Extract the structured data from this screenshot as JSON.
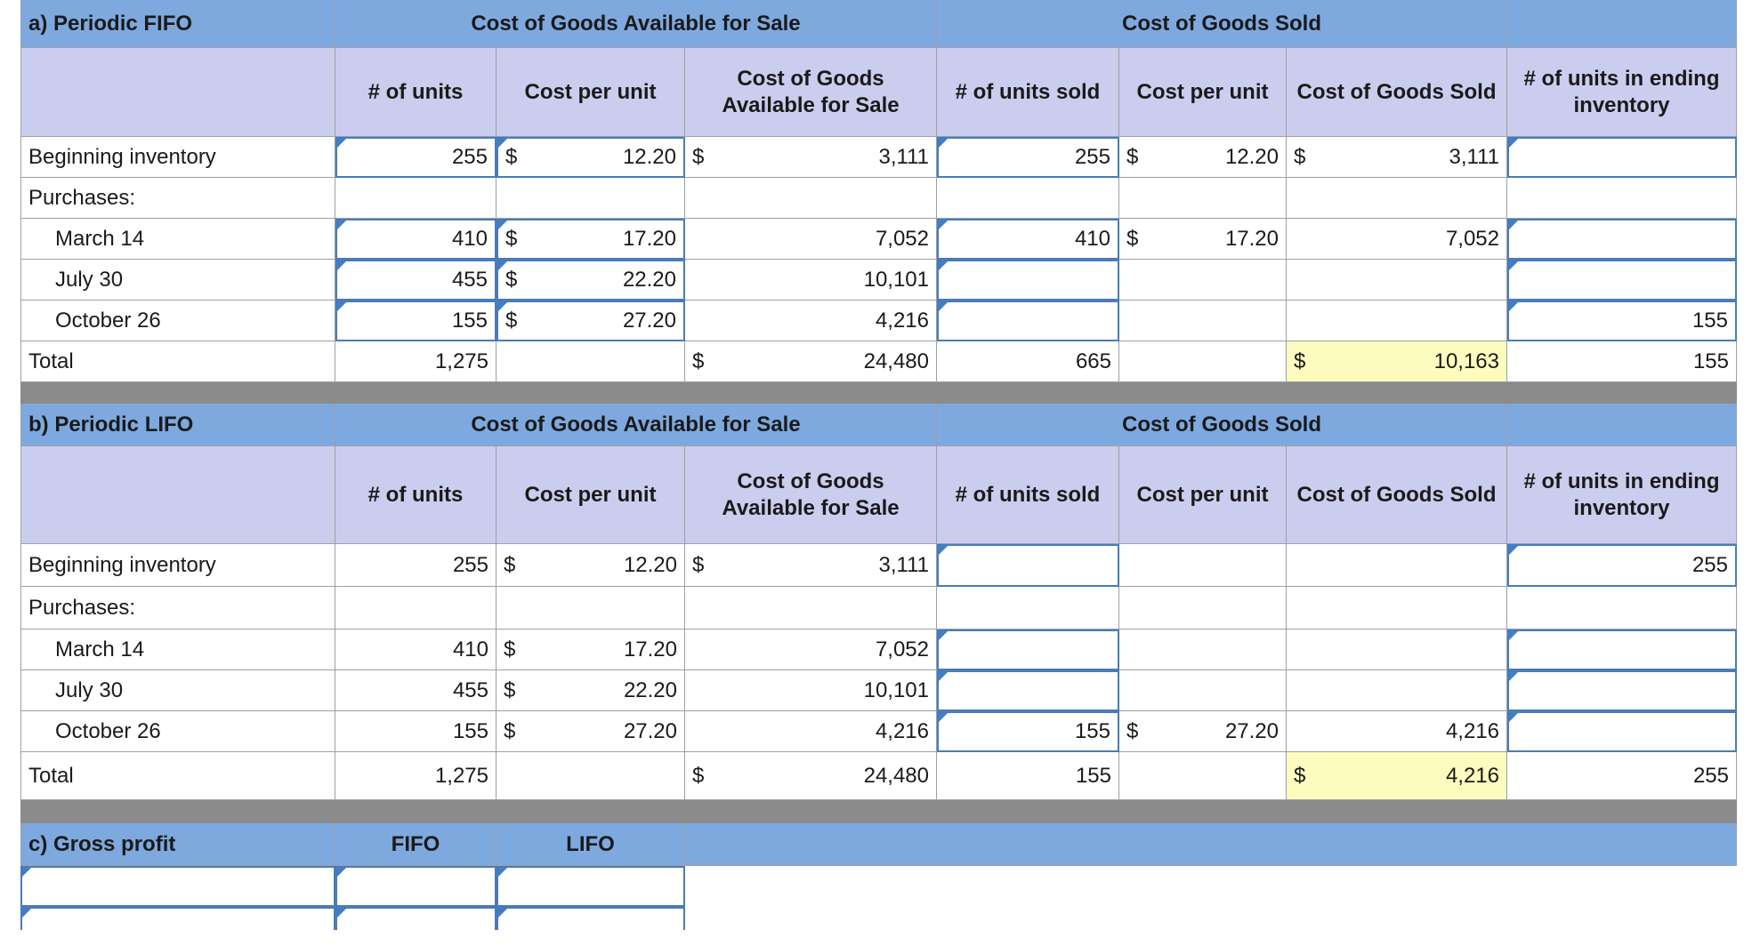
{
  "fifo": {
    "title": "a) Periodic FIFO",
    "group_available": "Cost of Goods Available for Sale",
    "group_sold": "Cost of Goods Sold",
    "col_units": "# of units",
    "col_cost_per_unit": "Cost per unit",
    "col_cogas": "Cost of Goods Available for Sale",
    "col_units_sold": "# of units sold",
    "col_cost_per_unit_sold": "Cost per unit",
    "col_cogs": "Cost of Goods Sold",
    "col_ending": "# of units in ending inventory",
    "rows": [
      {
        "label": "Beginning inventory",
        "units": "255",
        "cost_dollar": "$",
        "cost": "12.20",
        "avail_dollar": "$",
        "avail": "3,111",
        "sold_units": "255",
        "sold_cost_dollar": "$",
        "sold_cost": "12.20",
        "cogs_dollar": "$",
        "cogs": "3,111",
        "ending": ""
      },
      {
        "label": "Purchases:"
      },
      {
        "label": "March 14",
        "units": "410",
        "cost_dollar": "$",
        "cost": "17.20",
        "avail_dollar": "",
        "avail": "7,052",
        "sold_units": "410",
        "sold_cost_dollar": "$",
        "sold_cost": "17.20",
        "cogs_dollar": "",
        "cogs": "7,052",
        "ending": ""
      },
      {
        "label": "July 30",
        "units": "455",
        "cost_dollar": "$",
        "cost": "22.20",
        "avail_dollar": "",
        "avail": "10,101",
        "sold_units": "",
        "sold_cost_dollar": "",
        "sold_cost": "",
        "cogs_dollar": "",
        "cogs": "",
        "ending": ""
      },
      {
        "label": "October 26",
        "units": "155",
        "cost_dollar": "$",
        "cost": "27.20",
        "avail_dollar": "",
        "avail": "4,216",
        "sold_units": "",
        "sold_cost_dollar": "",
        "sold_cost": "",
        "cogs_dollar": "",
        "cogs": "",
        "ending": "155"
      }
    ],
    "total": {
      "label": "Total",
      "units": "1,275",
      "avail_dollar": "$",
      "avail": "24,480",
      "sold_units": "665",
      "cogs_dollar": "$",
      "cogs": "10,163",
      "ending": "155"
    }
  },
  "lifo": {
    "title": "b) Periodic LIFO",
    "group_available": "Cost of Goods Available for Sale",
    "group_sold": "Cost of Goods Sold",
    "col_units": "# of units",
    "col_cost_per_unit": "Cost per unit",
    "col_cogas": "Cost of Goods Available for Sale",
    "col_units_sold": "# of units sold",
    "col_cost_per_unit_sold": "Cost per unit",
    "col_cogs": "Cost of Goods Sold",
    "col_ending": "# of units in ending inventory",
    "rows": [
      {
        "label": "Beginning inventory",
        "units": "255",
        "cost_dollar": "$",
        "cost": "12.20",
        "avail_dollar": "$",
        "avail": "3,111",
        "sold_units": "",
        "sold_cost_dollar": "",
        "sold_cost": "",
        "cogs_dollar": "",
        "cogs": "",
        "ending": "255"
      },
      {
        "label": "Purchases:"
      },
      {
        "label": "March 14",
        "units": "410",
        "cost_dollar": "$",
        "cost": "17.20",
        "avail_dollar": "",
        "avail": "7,052",
        "sold_units": "",
        "sold_cost_dollar": "",
        "sold_cost": "",
        "cogs_dollar": "",
        "cogs": "",
        "ending": ""
      },
      {
        "label": "July 30",
        "units": "455",
        "cost_dollar": "$",
        "cost": "22.20",
        "avail_dollar": "",
        "avail": "10,101",
        "sold_units": "",
        "sold_cost_dollar": "",
        "sold_cost": "",
        "cogs_dollar": "",
        "cogs": "",
        "ending": ""
      },
      {
        "label": "October 26",
        "units": "155",
        "cost_dollar": "$",
        "cost": "27.20",
        "avail_dollar": "",
        "avail": "4,216",
        "sold_units": "155",
        "sold_cost_dollar": "$",
        "sold_cost": "27.20",
        "cogs_dollar": "",
        "cogs": "4,216",
        "ending": ""
      }
    ],
    "total": {
      "label": "Total",
      "units": "1,275",
      "avail_dollar": "$",
      "avail": "24,480",
      "sold_units": "155",
      "cogs_dollar": "$",
      "cogs": "4,216",
      "ending": "255"
    }
  },
  "gross_profit": {
    "title": "c) Gross profit",
    "col_fifo": "FIFO",
    "col_lifo": "LIFO"
  },
  "colors": {
    "header_blue": "#7ea9df",
    "subheader_lavender": "#cbcdee",
    "highlight_yellow": "#fdfbbe",
    "separator_grey": "#8b8b8b",
    "input_border": "#4a7bb7"
  }
}
